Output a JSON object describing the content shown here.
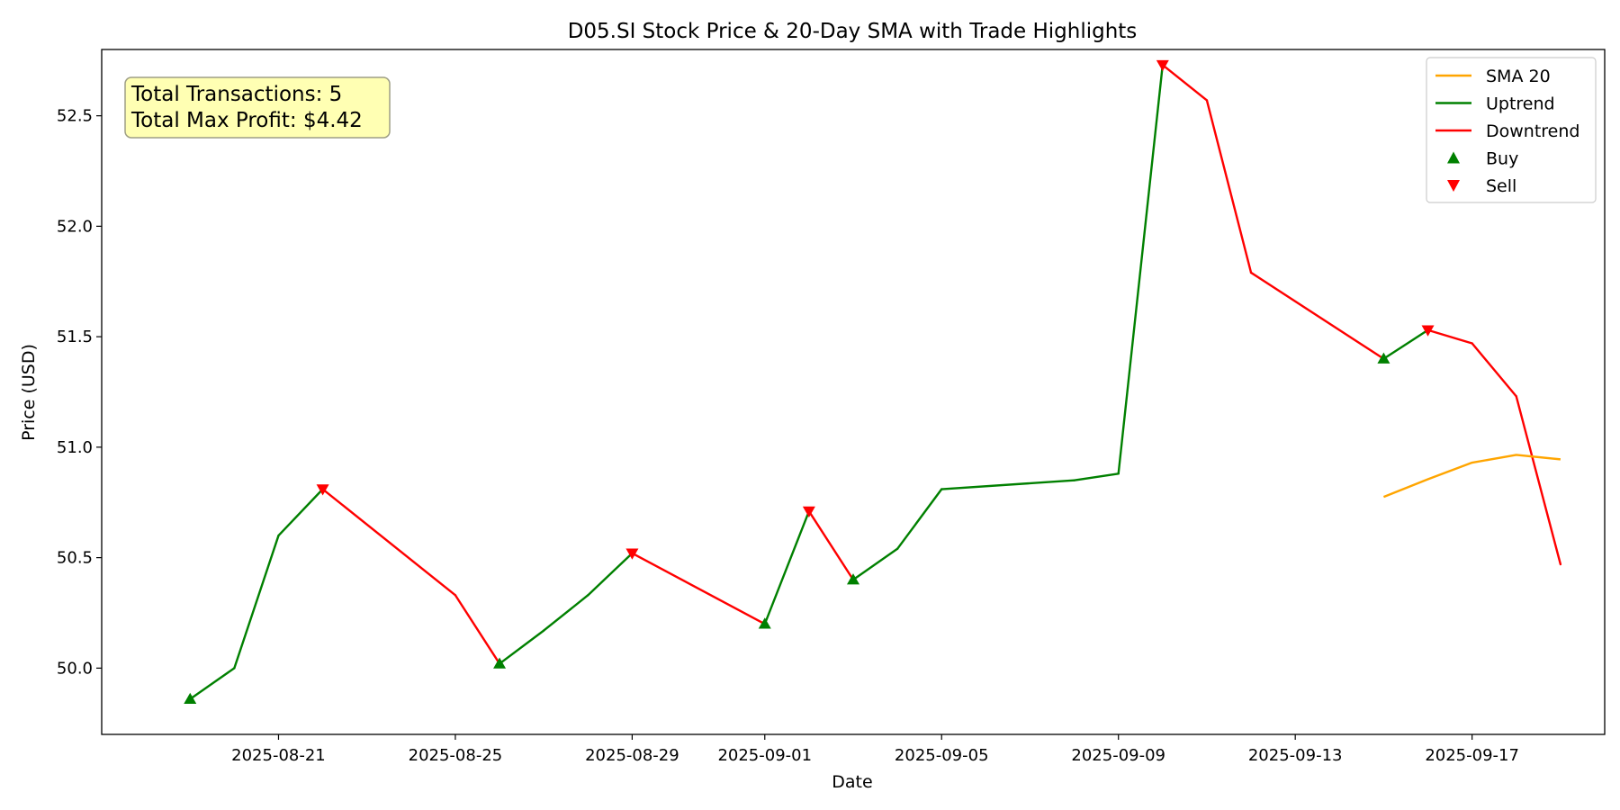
{
  "chart_data": {
    "type": "line",
    "title": "D05.SI Stock Price & 20-Day SMA with Trade Highlights",
    "xlabel": "Date",
    "ylabel": "Price (USD)",
    "xlim": [
      "2025-08-17",
      "2025-09-20"
    ],
    "ylim": [
      49.7,
      52.8
    ],
    "grid": false,
    "legend_position": "upper right",
    "x_ticks": [
      "2025-08-21",
      "2025-08-25",
      "2025-08-29",
      "2025-09-01",
      "2025-09-05",
      "2025-09-09",
      "2025-09-13",
      "2025-09-17"
    ],
    "y_ticks": [
      50.0,
      50.5,
      51.0,
      51.5,
      52.0,
      52.5
    ],
    "y_tick_labels": [
      "50.0",
      "50.5",
      "51.0",
      "51.5",
      "52.0",
      "52.5"
    ],
    "colors": {
      "sma": "#FFA500",
      "uptrend": "#008000",
      "downtrend": "#FF0000",
      "buy": "#008000",
      "sell": "#FF0000",
      "annotation_bg": "#FFFFB3"
    },
    "price": [
      {
        "date": "2025-08-19",
        "value": 49.86
      },
      {
        "date": "2025-08-20",
        "value": 50.0
      },
      {
        "date": "2025-08-21",
        "value": 50.6
      },
      {
        "date": "2025-08-22",
        "value": 50.81
      },
      {
        "date": "2025-08-25",
        "value": 50.33
      },
      {
        "date": "2025-08-26",
        "value": 50.02
      },
      {
        "date": "2025-08-27",
        "value": 50.17
      },
      {
        "date": "2025-08-28",
        "value": 50.33
      },
      {
        "date": "2025-08-29",
        "value": 50.52
      },
      {
        "date": "2025-09-01",
        "value": 50.2
      },
      {
        "date": "2025-09-02",
        "value": 50.71
      },
      {
        "date": "2025-09-03",
        "value": 50.4
      },
      {
        "date": "2025-09-04",
        "value": 50.54
      },
      {
        "date": "2025-09-05",
        "value": 50.81
      },
      {
        "date": "2025-09-08",
        "value": 50.85
      },
      {
        "date": "2025-09-09",
        "value": 50.88
      },
      {
        "date": "2025-09-10",
        "value": 52.73
      },
      {
        "date": "2025-09-11",
        "value": 52.57
      },
      {
        "date": "2025-09-12",
        "value": 51.79
      },
      {
        "date": "2025-09-15",
        "value": 51.4
      },
      {
        "date": "2025-09-16",
        "value": 51.53
      },
      {
        "date": "2025-09-17",
        "value": 51.47
      },
      {
        "date": "2025-09-18",
        "value": 51.23
      },
      {
        "date": "2025-09-19",
        "value": 50.47
      }
    ],
    "sma_20": [
      {
        "date": "2025-09-15",
        "value": 50.775
      },
      {
        "date": "2025-09-16",
        "value": 50.855
      },
      {
        "date": "2025-09-17",
        "value": 50.93
      },
      {
        "date": "2025-09-18",
        "value": 50.965
      },
      {
        "date": "2025-09-19",
        "value": 50.945
      }
    ],
    "buy_points": [
      {
        "date": "2025-08-19",
        "value": 49.86
      },
      {
        "date": "2025-08-26",
        "value": 50.02
      },
      {
        "date": "2025-09-01",
        "value": 50.2
      },
      {
        "date": "2025-09-03",
        "value": 50.4
      },
      {
        "date": "2025-09-15",
        "value": 51.4
      }
    ],
    "sell_points": [
      {
        "date": "2025-08-22",
        "value": 50.81
      },
      {
        "date": "2025-08-29",
        "value": 50.52
      },
      {
        "date": "2025-09-02",
        "value": 50.71
      },
      {
        "date": "2025-09-10",
        "value": 52.73
      },
      {
        "date": "2025-09-16",
        "value": 51.53
      }
    ],
    "legend": [
      {
        "label": "SMA 20",
        "kind": "line",
        "color": "#FFA500"
      },
      {
        "label": "Uptrend",
        "kind": "line",
        "color": "#008000"
      },
      {
        "label": "Downtrend",
        "kind": "line",
        "color": "#FF0000"
      },
      {
        "label": "Buy",
        "kind": "triangle-up",
        "color": "#008000"
      },
      {
        "label": "Sell",
        "kind": "triangle-down",
        "color": "#FF0000"
      }
    ],
    "annotations": [
      "Total Transactions: 5",
      "Total Max Profit: $4.42"
    ]
  }
}
